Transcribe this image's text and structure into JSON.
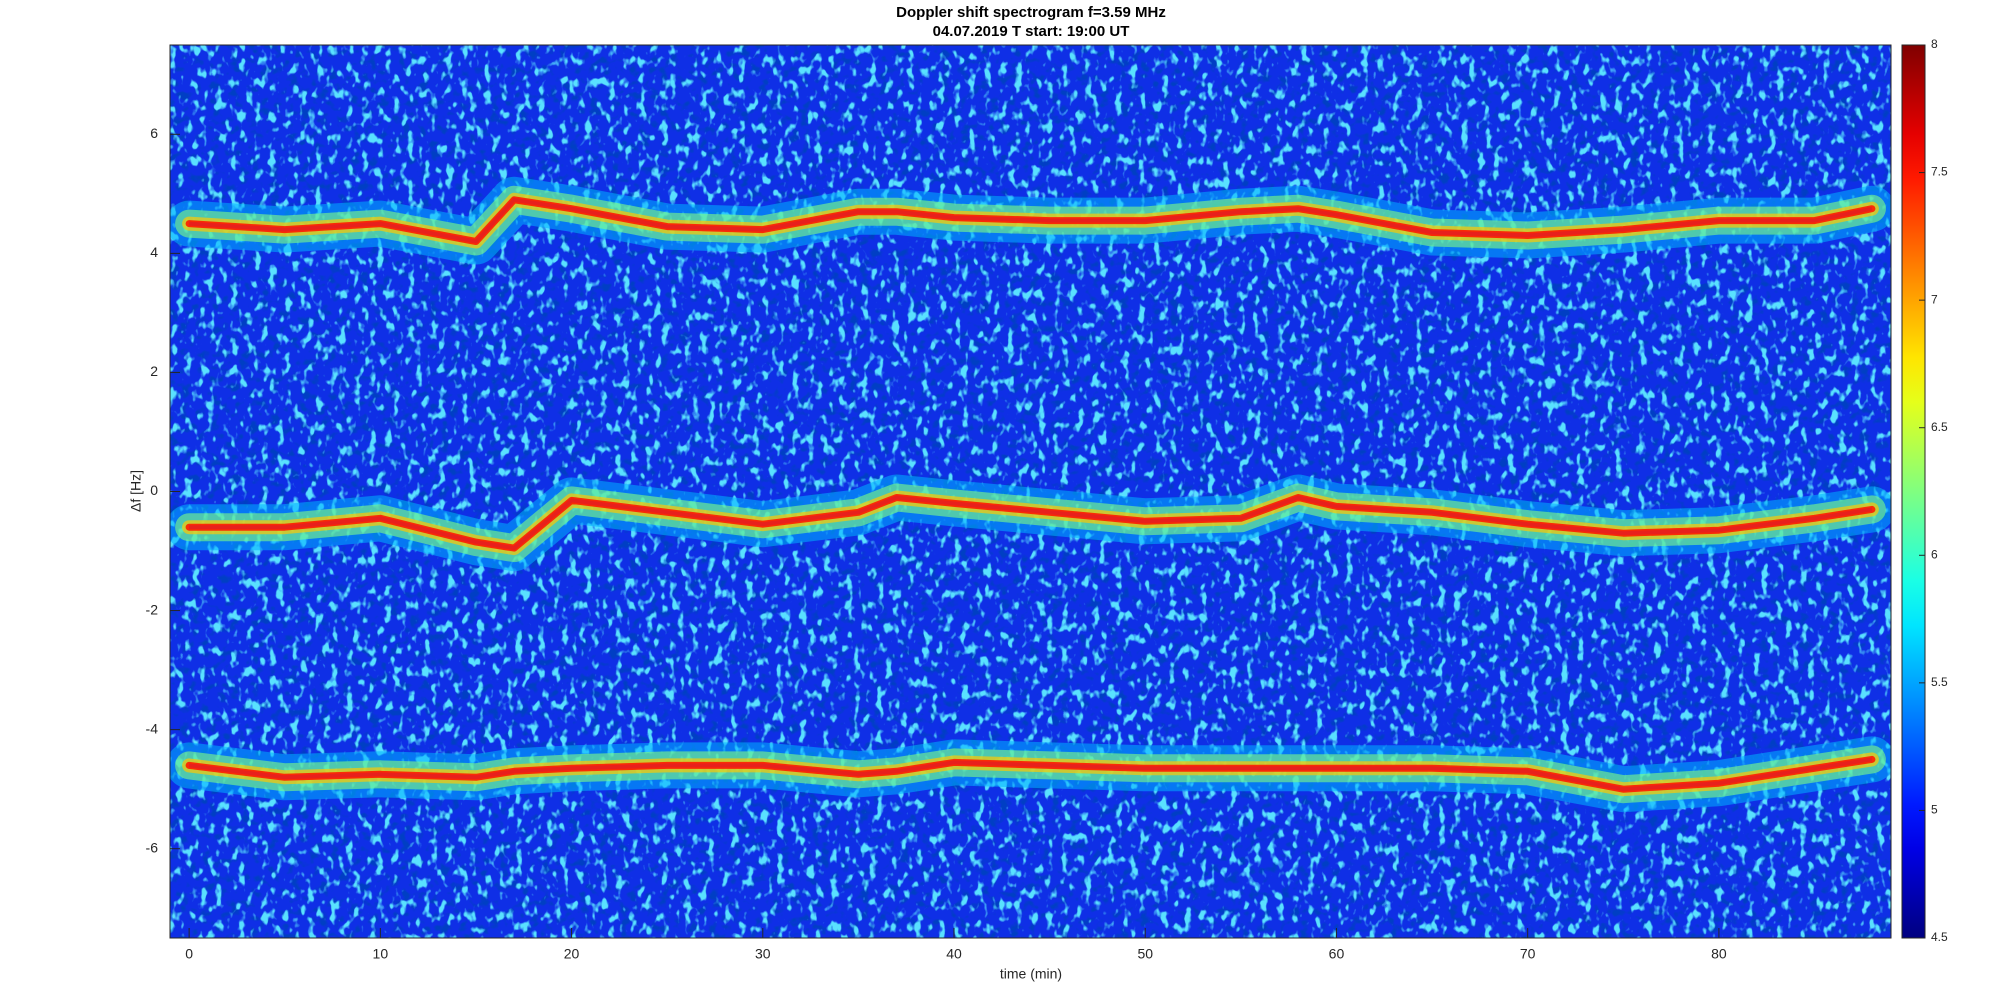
{
  "chart_data": {
    "type": "spectrogram",
    "title": "Doppler shift spectrogram f=3.59 MHz",
    "subtitle": "04.07.2019   T start: 19:00 UT",
    "x_label": "time (min)",
    "y_label": "Δf [Hz]",
    "xlim": [
      -1,
      89
    ],
    "xticks": [
      0,
      10,
      20,
      30,
      40,
      50,
      60,
      70,
      80
    ],
    "ylim": [
      -7.5,
      7.5
    ],
    "yticks": [
      -6,
      -4,
      -2,
      0,
      2,
      4,
      6
    ],
    "colormap": "jet",
    "clim": [
      4.5,
      8
    ],
    "cticks": [
      4.5,
      5,
      5.5,
      6,
      6.5,
      7,
      7.5,
      8
    ],
    "x": [
      0,
      5,
      10,
      15,
      17,
      20,
      25,
      30,
      35,
      37,
      40,
      45,
      50,
      55,
      58,
      60,
      65,
      70,
      75,
      80,
      85,
      88
    ],
    "series": [
      {
        "color": "#e8201c",
        "values": [
          4.5,
          4.4,
          4.5,
          4.2,
          4.9,
          4.75,
          4.45,
          4.4,
          4.7,
          4.7,
          4.6,
          4.55,
          4.55,
          4.7,
          4.75,
          4.65,
          4.35,
          4.3,
          4.4,
          4.55,
          4.55,
          4.75
        ]
      },
      {
        "color": "#e8201c",
        "values": [
          -0.6,
          -0.6,
          -0.45,
          -0.85,
          -0.95,
          -0.15,
          -0.35,
          -0.55,
          -0.35,
          -0.1,
          -0.2,
          -0.35,
          -0.5,
          -0.45,
          -0.1,
          -0.25,
          -0.35,
          -0.55,
          -0.7,
          -0.65,
          -0.45,
          -0.3
        ]
      },
      {
        "color": "#e8201c",
        "values": [
          -4.6,
          -4.8,
          -4.75,
          -4.8,
          -4.7,
          -4.65,
          -4.6,
          -4.6,
          -4.75,
          -4.7,
          -4.55,
          -4.6,
          -4.65,
          -4.65,
          -4.65,
          -4.65,
          -4.65,
          -4.7,
          -5.0,
          -4.9,
          -4.65,
          -4.5
        ]
      }
    ]
  }
}
